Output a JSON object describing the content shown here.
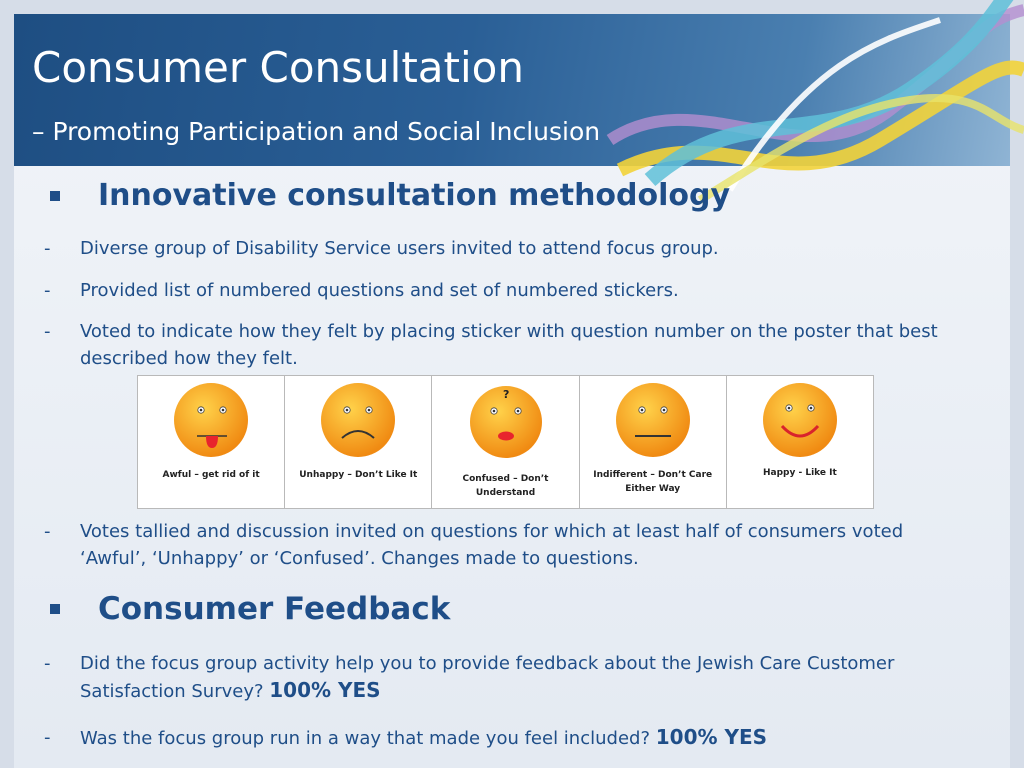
{
  "slide": {
    "title": "Consumer Consultation",
    "subtitle": "– Promoting Participation and Social Inclusion"
  },
  "section1": {
    "heading": "Innovative consultation methodology",
    "bullets": [
      "Diverse group of Disability Service users invited to attend focus group.",
      "Provided list of numbered questions and set of numbered stickers.",
      "Voted to indicate how they felt by placing sticker with question number on the poster that best described how they felt."
    ],
    "after_image_bullet": "Votes tallied and discussion invited on questions for which at least half of consumers voted ‘Awful’, ‘Unhappy’ or ‘Confused’. Changes made to questions."
  },
  "faces": [
    {
      "icon": "awful-face-icon",
      "label": "Awful – get rid of it"
    },
    {
      "icon": "unhappy-face-icon",
      "label": "Unhappy – Don’t Like It"
    },
    {
      "icon": "confused-face-icon",
      "label": "Confused – Don’t Understand"
    },
    {
      "icon": "indifferent-face-icon",
      "label": "Indifferent – Don’t Care Either Way"
    },
    {
      "icon": "happy-face-icon",
      "label": "Happy - Like It"
    }
  ],
  "section2": {
    "heading": "Consumer Feedback",
    "questions": [
      {
        "text": "Did the focus group activity help you to provide feedback about the Jewish Care Customer Satisfaction Survey?",
        "answer": "100% YES"
      },
      {
        "text": "Was the focus group run in a way that made you feel included?",
        "answer": "100% YES"
      }
    ]
  },
  "colors": {
    "header_blue": "#1e4e82",
    "text_blue": "#1f4e88",
    "face_orange": "#f5a21f"
  }
}
